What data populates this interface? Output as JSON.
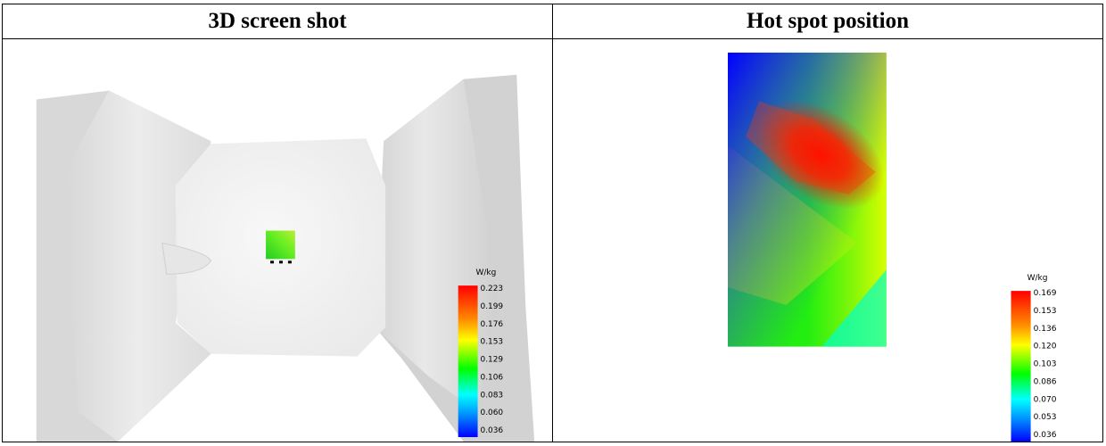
{
  "headers": {
    "left": "3D screen shot",
    "right": "Hot spot position"
  },
  "left_legend": {
    "unit": "W/kg",
    "ticks": [
      "0.223",
      "0.199",
      "0.176",
      "0.153",
      "0.129",
      "0.106",
      "0.083",
      "0.060",
      "0.036"
    ]
  },
  "right_legend": {
    "unit": "W/kg",
    "ticks": [
      "0.169",
      "0.153",
      "0.136",
      "0.120",
      "0.103",
      "0.086",
      "0.070",
      "0.053",
      "0.036"
    ]
  },
  "colors": {
    "scale_top": "#ff0000",
    "scale_mid": "#00ff00",
    "scale_bottom": "#0000ff"
  }
}
